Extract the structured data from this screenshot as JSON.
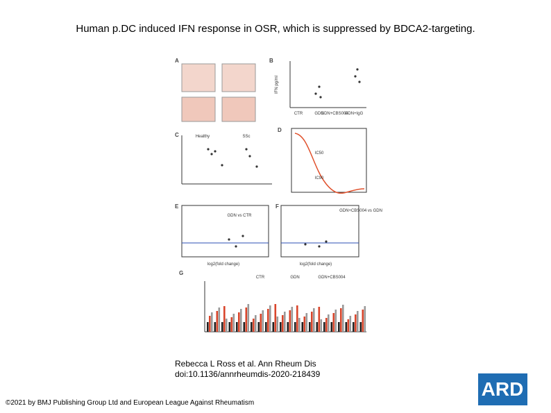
{
  "header": {
    "title": "Human p.DC induced IFN response in OSR, which is suppressed by BDCA2-targeting."
  },
  "figure": {
    "panels": [
      {
        "letter": "A",
        "texts": []
      },
      {
        "letter": "B",
        "texts": [
          "IFN pg/ml",
          "CTR",
          "GDN",
          "GDN+CBS004",
          "GDN+IgG"
        ]
      },
      {
        "letter": "C",
        "texts": [
          "Healthy",
          "SSc"
        ]
      },
      {
        "letter": "D",
        "texts": [
          "IC50",
          "IC90"
        ]
      },
      {
        "letter": "E",
        "texts": [
          "GDN vs CTR",
          "log2(fold change)"
        ]
      },
      {
        "letter": "F",
        "texts": [
          "GDN+CBS004 vs GDN",
          "log2(fold change)"
        ]
      },
      {
        "letter": "G",
        "texts": [
          "CTR",
          "GDN",
          "GDN+CBS004"
        ]
      }
    ]
  },
  "citation": {
    "authors": "Rebecca L Ross et al. Ann Rheum Dis",
    "doi": "doi:10.1136/annrheumdis-2020-218439"
  },
  "footer": {
    "copyright": "©2021 by BMJ Publishing Group Ltd and European League Against Rheumatism",
    "logo": "ARD"
  }
}
